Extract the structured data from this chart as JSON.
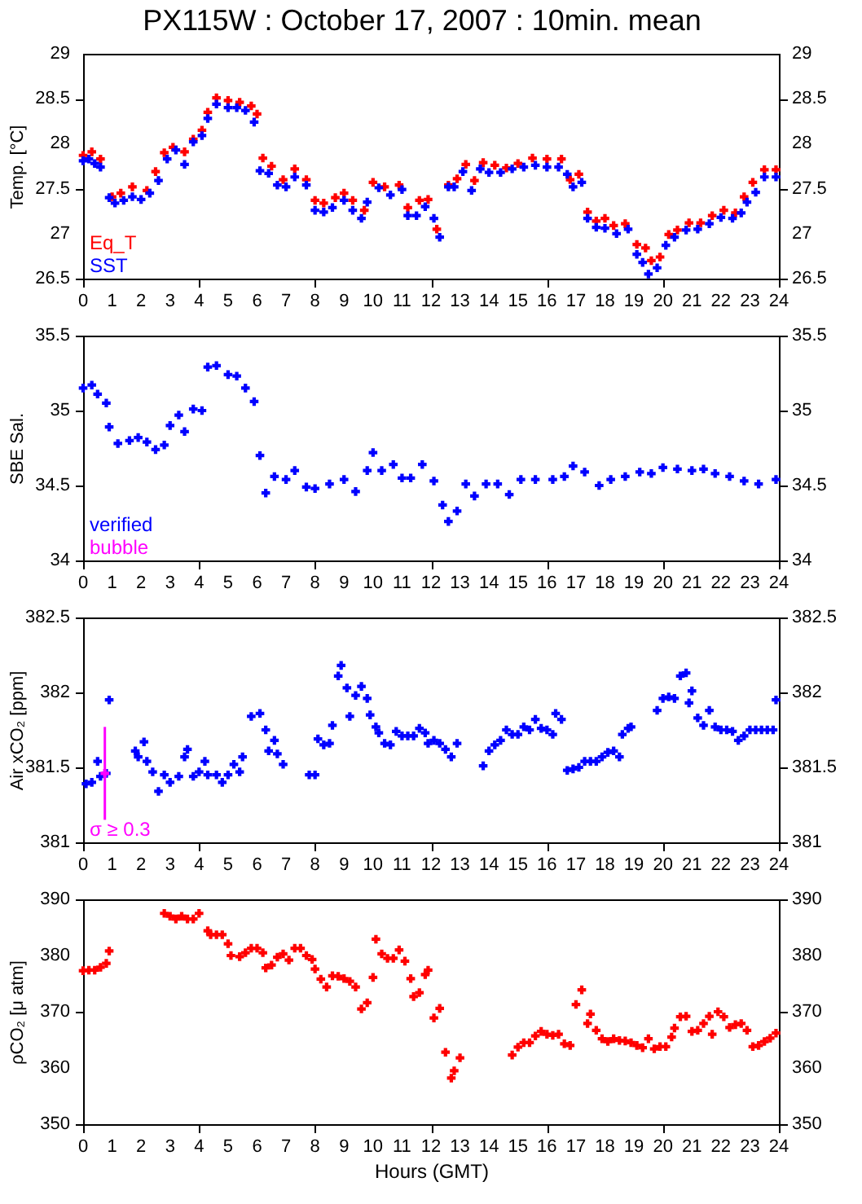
{
  "chart_data": [
    {
      "type": "scatter",
      "title": "PX115W : October 17, 2007 : 10min. mean",
      "ylabel": "Temp. [°C]",
      "xlim": [
        0,
        24
      ],
      "xticks": [
        0,
        1,
        2,
        3,
        4,
        5,
        6,
        7,
        8,
        9,
        10,
        11,
        12,
        13,
        14,
        15,
        16,
        17,
        18,
        19,
        20,
        21,
        22,
        23,
        24
      ],
      "ylim": [
        26.5,
        29
      ],
      "yticks": [
        26.5,
        27,
        27.5,
        28,
        28.5,
        29
      ],
      "y2lim": [
        26.5,
        29
      ],
      "y2ticks": [
        26.5,
        27,
        27.5,
        28,
        28.5,
        29
      ],
      "grid": false,
      "legend": "bottom left",
      "marker": "cross",
      "series": [
        {
          "name": "Eq_T",
          "color": "#ff0000",
          "x": [
            0,
            0.3,
            0.6,
            1.0,
            1.3,
            1.7,
            2.2,
            2.5,
            2.8,
            3.1,
            3.5,
            3.8,
            4.1,
            4.3,
            4.6,
            5.0,
            5.4,
            5.8,
            6.0,
            6.2,
            6.5,
            6.9,
            7.3,
            7.7,
            8.0,
            8.3,
            8.7,
            9.0,
            9.3,
            9.7,
            10.0,
            10.4,
            10.9,
            11.2,
            11.6,
            11.9,
            12.2,
            12.6,
            12.9,
            13.2,
            13.5,
            13.8,
            14.2,
            14.6,
            15.0,
            15.5,
            16.0,
            16.5,
            16.8,
            17.1,
            17.4,
            17.7,
            18.0,
            18.3,
            18.7,
            19.1,
            19.4,
            19.6,
            19.9,
            20.2,
            20.5,
            20.9,
            21.3,
            21.7,
            22.1,
            22.5,
            22.8,
            23.1,
            23.5,
            23.9
          ],
          "values": [
            27.87,
            27.91,
            27.83,
            27.41,
            27.45,
            27.52,
            27.48,
            27.69,
            27.9,
            27.96,
            27.91,
            28.05,
            28.15,
            28.35,
            28.51,
            28.48,
            28.46,
            28.42,
            28.33,
            27.84,
            27.75,
            27.6,
            27.72,
            27.6,
            27.37,
            27.34,
            27.4,
            27.45,
            27.37,
            27.26,
            27.57,
            27.52,
            27.54,
            27.29,
            27.37,
            27.38,
            27.05,
            27.54,
            27.61,
            27.77,
            27.59,
            27.79,
            27.76,
            27.73,
            27.78,
            27.84,
            27.83,
            27.83,
            27.6,
            27.66,
            27.24,
            27.14,
            27.17,
            27.09,
            27.11,
            26.88,
            26.84,
            26.7,
            26.74,
            26.99,
            27.04,
            27.12,
            27.12,
            27.2,
            27.26,
            27.23,
            27.41,
            27.57,
            27.71,
            27.71
          ]
        },
        {
          "name": "SST",
          "color": "#0000ff",
          "x": [
            0,
            0.2,
            0.4,
            0.6,
            0.9,
            1.1,
            1.4,
            1.7,
            2.0,
            2.3,
            2.6,
            2.9,
            3.2,
            3.5,
            3.8,
            4.1,
            4.3,
            4.6,
            5.0,
            5.3,
            5.6,
            5.9,
            6.1,
            6.4,
            6.7,
            7.0,
            7.3,
            7.7,
            8.0,
            8.3,
            8.6,
            9.0,
            9.3,
            9.6,
            9.8,
            10.2,
            10.6,
            11.0,
            11.2,
            11.5,
            11.8,
            12.1,
            12.3,
            12.6,
            12.8,
            13.1,
            13.4,
            13.7,
            14.0,
            14.4,
            14.8,
            15.2,
            15.6,
            16.0,
            16.4,
            16.7,
            16.9,
            17.2,
            17.4,
            17.7,
            18.0,
            18.4,
            18.8,
            19.1,
            19.3,
            19.5,
            19.8,
            20.1,
            20.4,
            20.8,
            21.2,
            21.6,
            22.0,
            22.4,
            22.7,
            22.9,
            23.2,
            23.5,
            23.9
          ],
          "values": [
            27.81,
            27.83,
            27.78,
            27.74,
            27.4,
            27.34,
            27.37,
            27.41,
            27.38,
            27.45,
            27.59,
            27.83,
            27.93,
            27.77,
            28.02,
            28.09,
            28.28,
            28.44,
            28.4,
            28.4,
            28.37,
            28.24,
            27.7,
            27.67,
            27.54,
            27.52,
            27.63,
            27.54,
            27.26,
            27.24,
            27.29,
            27.37,
            27.26,
            27.17,
            27.35,
            27.51,
            27.43,
            27.49,
            27.2,
            27.2,
            27.3,
            27.17,
            26.96,
            27.52,
            27.52,
            27.69,
            27.48,
            27.72,
            27.68,
            27.68,
            27.72,
            27.74,
            27.76,
            27.74,
            27.74,
            27.66,
            27.52,
            27.57,
            27.17,
            27.07,
            27.06,
            27.0,
            27.05,
            26.77,
            26.68,
            26.55,
            26.62,
            26.87,
            26.96,
            27.04,
            27.05,
            27.11,
            27.18,
            27.17,
            27.23,
            27.35,
            27.46,
            27.63,
            27.63
          ]
        }
      ]
    },
    {
      "type": "scatter",
      "ylabel": "SBE Sal.",
      "xlim": [
        0,
        24
      ],
      "xticks": [
        0,
        1,
        2,
        3,
        4,
        5,
        6,
        7,
        8,
        9,
        10,
        11,
        12,
        13,
        14,
        15,
        16,
        17,
        18,
        19,
        20,
        21,
        22,
        23,
        24
      ],
      "ylim": [
        34,
        35.5
      ],
      "yticks": [
        34,
        34.5,
        35,
        35.5
      ],
      "y2lim": [
        34,
        35.5
      ],
      "y2ticks": [
        34,
        34.5,
        35,
        35.5
      ],
      "grid": false,
      "legend": "bottom left",
      "marker": "cross",
      "series": [
        {
          "name": "verified",
          "color": "#0000ff",
          "x": [
            0,
            0.3,
            0.5,
            0.8,
            0.9,
            1.2,
            1.6,
            1.9,
            2.2,
            2.5,
            2.8,
            3.0,
            3.3,
            3.5,
            3.8,
            4.1,
            4.3,
            4.6,
            5.0,
            5.3,
            5.6,
            5.9,
            6.1,
            6.3,
            6.6,
            7.0,
            7.3,
            7.7,
            8.0,
            8.5,
            9.0,
            9.4,
            9.8,
            10.0,
            10.3,
            10.7,
            11.0,
            11.3,
            11.7,
            12.1,
            12.4,
            12.6,
            12.9,
            13.2,
            13.5,
            13.9,
            14.3,
            14.7,
            15.1,
            15.6,
            16.2,
            16.6,
            16.9,
            17.3,
            17.8,
            18.2,
            18.7,
            19.2,
            19.6,
            20.0,
            20.5,
            21.0,
            21.4,
            21.8,
            22.3,
            22.8,
            23.3,
            23.9
          ],
          "values": [
            35.15,
            35.17,
            35.11,
            35.05,
            34.89,
            34.78,
            34.8,
            34.82,
            34.79,
            34.74,
            34.77,
            34.9,
            34.97,
            34.86,
            35.01,
            35.0,
            35.29,
            35.3,
            35.24,
            35.23,
            35.15,
            35.06,
            34.7,
            34.45,
            34.56,
            34.54,
            34.6,
            34.49,
            34.48,
            34.51,
            34.54,
            34.46,
            34.6,
            34.72,
            34.6,
            34.64,
            34.55,
            34.55,
            34.64,
            34.53,
            34.37,
            34.26,
            34.33,
            34.51,
            34.43,
            34.51,
            34.51,
            34.44,
            34.54,
            34.54,
            34.54,
            34.56,
            34.63,
            34.59,
            34.5,
            34.54,
            34.56,
            34.59,
            34.58,
            34.62,
            34.61,
            34.6,
            34.61,
            34.58,
            34.56,
            34.53,
            34.51,
            34.54
          ]
        },
        {
          "name": "bubble",
          "color": "#ff00ff"
        }
      ]
    },
    {
      "type": "scatter",
      "ylabel": "Air xCO₂ [ppm]",
      "xlim": [
        0,
        24
      ],
      "xticks": [
        0,
        1,
        2,
        3,
        4,
        5,
        6,
        7,
        8,
        9,
        10,
        11,
        12,
        13,
        14,
        15,
        16,
        17,
        18,
        19,
        20,
        21,
        22,
        23,
        24
      ],
      "ylim": [
        381,
        382.5
      ],
      "yticks": [
        381,
        381.5,
        382,
        382.5
      ],
      "y2lim": [
        381,
        382.5
      ],
      "y2ticks": [
        381,
        381.5,
        382,
        382.5
      ],
      "grid": false,
      "legend": "bottom left",
      "marker": "cross",
      "series": [
        {
          "color": "#0000ff",
          "x": [
            0.1,
            0.3,
            0.5,
            0.6,
            0.8,
            0.9,
            1.8,
            1.9,
            2.1,
            2.2,
            2.4,
            2.6,
            2.8,
            3.0,
            3.3,
            3.5,
            3.6,
            3.8,
            4.0,
            4.2,
            4.3,
            4.6,
            4.8,
            5.0,
            5.2,
            5.4,
            5.5,
            5.8,
            6.1,
            6.3,
            6.4,
            6.6,
            6.7,
            6.9,
            7.8,
            8.0,
            8.1,
            8.3,
            8.5,
            8.6,
            8.8,
            8.9,
            9.1,
            9.2,
            9.4,
            9.6,
            9.8,
            9.9,
            10.1,
            10.2,
            10.4,
            10.6,
            10.8,
            11.0,
            11.2,
            11.4,
            11.6,
            11.8,
            11.9,
            12.1,
            12.3,
            12.5,
            12.7,
            12.9,
            13.8,
            14.0,
            14.2,
            14.4,
            14.6,
            14.8,
            15.0,
            15.2,
            15.4,
            15.6,
            15.8,
            16.0,
            16.2,
            16.3,
            16.5,
            16.7,
            16.9,
            17.1,
            17.3,
            17.5,
            17.7,
            17.9,
            18.1,
            18.3,
            18.5,
            18.6,
            18.8,
            18.9,
            19.8,
            20.0,
            20.2,
            20.4,
            20.6,
            20.8,
            20.9,
            21.0,
            21.2,
            21.4,
            21.6,
            21.8,
            22.0,
            22.2,
            22.4,
            22.6,
            22.8,
            23.0,
            23.2,
            23.4,
            23.6,
            23.8,
            23.9
          ],
          "values": [
            381.39,
            381.4,
            381.54,
            381.44,
            381.46,
            381.95,
            381.61,
            381.57,
            381.67,
            381.54,
            381.47,
            381.34,
            381.45,
            381.4,
            381.44,
            381.57,
            381.62,
            381.44,
            381.47,
            381.54,
            381.45,
            381.45,
            381.4,
            381.45,
            381.52,
            381.47,
            381.57,
            381.84,
            381.86,
            381.75,
            381.61,
            381.68,
            381.59,
            381.52,
            381.45,
            381.45,
            381.69,
            381.65,
            381.66,
            381.78,
            382.11,
            382.18,
            382.03,
            381.84,
            381.98,
            382.04,
            381.96,
            381.85,
            381.77,
            381.73,
            381.66,
            381.65,
            381.74,
            381.71,
            381.71,
            381.71,
            381.76,
            381.73,
            381.66,
            381.68,
            381.66,
            381.62,
            381.57,
            381.66,
            381.51,
            381.61,
            381.65,
            381.68,
            381.75,
            381.72,
            381.72,
            381.77,
            381.75,
            381.82,
            381.76,
            381.75,
            381.72,
            381.86,
            381.82,
            381.48,
            381.49,
            381.5,
            381.54,
            381.54,
            381.54,
            381.57,
            381.6,
            381.61,
            381.57,
            381.72,
            381.76,
            381.77,
            381.88,
            381.96,
            381.97,
            381.96,
            382.11,
            382.13,
            381.93,
            382.01,
            381.83,
            381.78,
            381.88,
            381.77,
            381.75,
            381.75,
            381.74,
            381.68,
            381.71,
            381.75,
            381.75,
            381.75,
            381.75,
            381.75,
            381.95
          ]
        },
        {
          "name": "σ ≥ 0.3",
          "color": "#ff00ff",
          "x": [
            0.75
          ],
          "values": [
            381.46
          ],
          "errors": [
            0.31
          ]
        }
      ]
    },
    {
      "type": "scatter",
      "ylabel": "ρCO₂ [μ atm]",
      "xlabel": "Hours (GMT)",
      "xlim": [
        0,
        24
      ],
      "xticks": [
        0,
        1,
        2,
        3,
        4,
        5,
        6,
        7,
        8,
        9,
        10,
        11,
        12,
        13,
        14,
        15,
        16,
        17,
        18,
        19,
        20,
        21,
        22,
        23,
        24
      ],
      "ylim": [
        350,
        390
      ],
      "yticks": [
        350,
        360,
        370,
        380,
        390
      ],
      "y2lim": [
        350,
        390
      ],
      "y2ticks": [
        350,
        360,
        370,
        380,
        390
      ],
      "grid": false,
      "marker": "cross",
      "series": [
        {
          "color": "#ff0000",
          "x": [
            0.0,
            0.2,
            0.4,
            0.6,
            0.8,
            0.9,
            2.8,
            3.0,
            3.2,
            3.4,
            3.6,
            3.8,
            4.0,
            4.3,
            4.4,
            4.6,
            4.8,
            5.0,
            5.1,
            5.4,
            5.6,
            5.8,
            6.0,
            6.2,
            6.3,
            6.5,
            6.7,
            6.9,
            7.1,
            7.3,
            7.5,
            7.7,
            7.9,
            8.0,
            8.2,
            8.4,
            8.6,
            8.8,
            9.0,
            9.2,
            9.4,
            9.6,
            9.8,
            10.0,
            10.1,
            10.3,
            10.5,
            10.7,
            10.9,
            11.1,
            11.3,
            11.4,
            11.6,
            11.8,
            11.9,
            12.1,
            12.3,
            12.5,
            12.7,
            12.8,
            13.0,
            14.8,
            15.0,
            15.2,
            15.4,
            15.6,
            15.8,
            16.0,
            16.2,
            16.4,
            16.6,
            16.8,
            17.0,
            17.2,
            17.4,
            17.5,
            17.7,
            17.9,
            18.1,
            18.3,
            18.5,
            18.7,
            18.9,
            19.1,
            19.3,
            19.5,
            19.7,
            19.9,
            20.1,
            20.3,
            20.4,
            20.6,
            20.8,
            21.0,
            21.2,
            21.4,
            21.6,
            21.7,
            21.9,
            22.1,
            22.3,
            22.5,
            22.7,
            22.9,
            23.1,
            23.3,
            23.5,
            23.7,
            23.9
          ],
          "values": [
            377.3,
            377.4,
            377.4,
            377.9,
            378.6,
            380.8,
            387.5,
            387.0,
            386.5,
            387.0,
            386.5,
            386.5,
            387.5,
            384.4,
            383.7,
            383.7,
            383.7,
            382.1,
            380.0,
            379.8,
            380.5,
            381.3,
            381.3,
            380.5,
            377.8,
            378.3,
            379.7,
            380.3,
            379.2,
            381.3,
            381.3,
            380.0,
            379.3,
            377.6,
            375.8,
            374.4,
            376.4,
            376.3,
            375.9,
            375.4,
            374.4,
            370.5,
            371.6,
            376.1,
            382.9,
            380.3,
            379.5,
            379.5,
            381.0,
            379.0,
            375.9,
            372.7,
            373.4,
            376.6,
            377.4,
            368.9,
            370.6,
            362.8,
            358.2,
            359.5,
            361.8,
            362.3,
            363.7,
            364.5,
            364.5,
            365.7,
            366.5,
            366.0,
            365.8,
            366.0,
            364.3,
            364.0,
            371.3,
            373.9,
            367.9,
            369.6,
            366.7,
            365.2,
            364.7,
            365.2,
            364.9,
            364.8,
            364.5,
            364.0,
            363.6,
            365.2,
            363.4,
            363.8,
            363.8,
            365.5,
            367.1,
            369.1,
            369.2,
            366.5,
            366.7,
            367.9,
            369.2,
            366.0,
            370.0,
            369.1,
            367.2,
            367.7,
            367.9,
            366.7,
            363.8,
            364.0,
            364.7,
            365.3,
            366.2
          ]
        }
      ]
    }
  ]
}
